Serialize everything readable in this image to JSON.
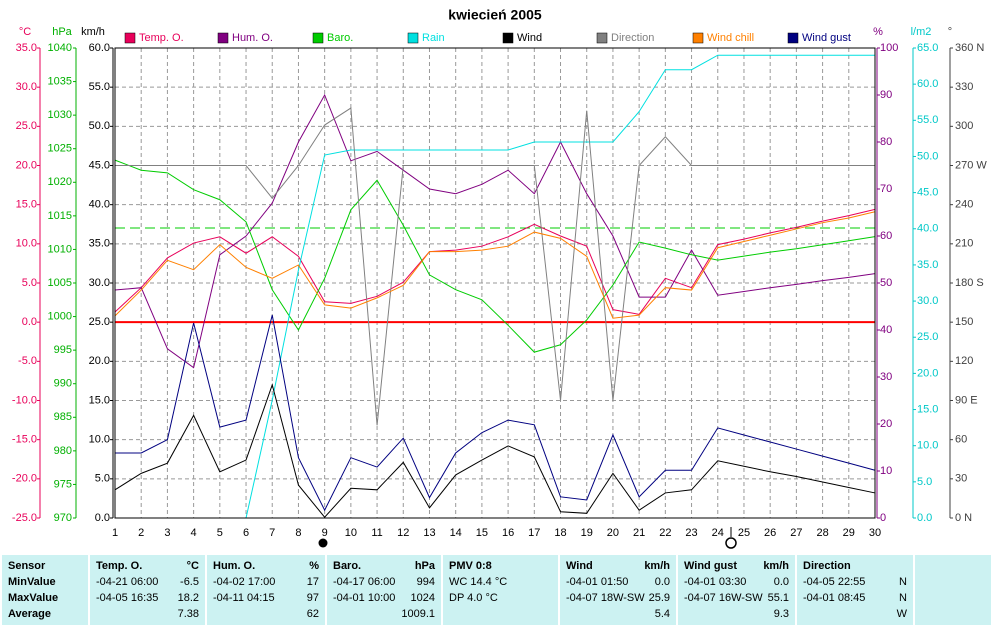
{
  "chart_data": {
    "type": "line",
    "title": "kwiecień 2005",
    "x": [
      1,
      2,
      3,
      4,
      5,
      6,
      7,
      8,
      9,
      10,
      11,
      12,
      13,
      14,
      15,
      16,
      17,
      18,
      19,
      20,
      21,
      22,
      23,
      24,
      25,
      26,
      27,
      28,
      29,
      30
    ],
    "xlim": [
      1,
      30
    ],
    "xticks": [
      1,
      2,
      3,
      4,
      5,
      6,
      7,
      8,
      9,
      10,
      11,
      12,
      13,
      14,
      15,
      16,
      17,
      18,
      19,
      20,
      21,
      22,
      23,
      24,
      25,
      26,
      27,
      28,
      29,
      30
    ],
    "ylabel": "km/h",
    "ylim": [
      0,
      60
    ],
    "yticks": [
      {
        "value": 0,
        "label": "0.0"
      },
      {
        "value": 5,
        "label": "5.0"
      },
      {
        "value": 10,
        "label": "10.0"
      },
      {
        "value": 15,
        "label": "15.0"
      },
      {
        "value": 20,
        "label": "20.0"
      },
      {
        "value": 25,
        "label": "25.0"
      },
      {
        "value": 30,
        "label": "30.0"
      },
      {
        "value": 35,
        "label": "35.0"
      },
      {
        "value": 40,
        "label": "40.0"
      },
      {
        "value": 45,
        "label": "45.0"
      },
      {
        "value": 50,
        "label": "50.0"
      },
      {
        "value": 55,
        "label": "55.0"
      },
      {
        "value": 60,
        "label": "60.0"
      }
    ],
    "grid": true,
    "axes": {
      "temp": {
        "label": "°C",
        "color": "#e8005a",
        "lim": [
          -25,
          35
        ],
        "ticks": [
          {
            "value": -25,
            "label": "-25.0"
          },
          {
            "value": -20,
            "label": "-20.0"
          },
          {
            "value": -15,
            "label": "-15.0"
          },
          {
            "value": -10,
            "label": "-10.0"
          },
          {
            "value": -5,
            "label": "-5.0"
          },
          {
            "value": 0,
            "label": "0.0"
          },
          {
            "value": 5,
            "label": "5.0"
          },
          {
            "value": 10,
            "label": "10.0"
          },
          {
            "value": 15,
            "label": "15.0"
          },
          {
            "value": 20,
            "label": "20.0"
          },
          {
            "value": 25,
            "label": "25.0"
          },
          {
            "value": 30,
            "label": "30.0"
          },
          {
            "value": 35,
            "label": "35.0"
          }
        ]
      },
      "baro": {
        "label": "hPa",
        "color": "#00b000",
        "lim": [
          970,
          1040
        ],
        "ticks": [
          970,
          975,
          980,
          985,
          990,
          995,
          1000,
          1005,
          1010,
          1015,
          1020,
          1025,
          1030,
          1035,
          1040
        ]
      },
      "hum": {
        "label": "%",
        "color": "#800080",
        "lim": [
          0,
          100
        ],
        "ticks": [
          0,
          10,
          20,
          30,
          40,
          50,
          60,
          70,
          80,
          90,
          100
        ]
      },
      "rain": {
        "label": "l/m2",
        "color": "#00c8c8",
        "lim": [
          0,
          65
        ],
        "ticks": [
          {
            "value": 0,
            "label": "0.0"
          },
          {
            "value": 5,
            "label": "5.0"
          },
          {
            "value": 10,
            "label": "10.0"
          },
          {
            "value": 15,
            "label": "15.0"
          },
          {
            "value": 20,
            "label": "20.0"
          },
          {
            "value": 25,
            "label": "25.0"
          },
          {
            "value": 30,
            "label": "30.0"
          },
          {
            "value": 35,
            "label": "35.0"
          },
          {
            "value": 40,
            "label": "40.0"
          },
          {
            "value": 45,
            "label": "45.0"
          },
          {
            "value": 50,
            "label": "50.0"
          },
          {
            "value": 55,
            "label": "55.0"
          },
          {
            "value": 60,
            "label": "60.0"
          },
          {
            "value": 65,
            "label": "65.0"
          }
        ]
      },
      "dir": {
        "label": "°",
        "color": "#404040",
        "lim": [
          0,
          360
        ],
        "ticks": [
          {
            "value": 0,
            "label": "0 N"
          },
          30,
          60,
          {
            "value": 90,
            "label": "90 E"
          },
          120,
          150,
          {
            "value": 180,
            "label": "180 S"
          },
          210,
          240,
          {
            "value": 270,
            "label": "270 W"
          },
          300,
          330,
          {
            "value": 360,
            "label": "360 N"
          }
        ]
      }
    },
    "reference_lines": [
      {
        "axis": "temp",
        "value": 0,
        "color": "#ff0000",
        "style": "solid"
      },
      {
        "axis": "baro",
        "value": 1013.2,
        "color": "#00cc00",
        "style": "dashed"
      }
    ],
    "series": [
      {
        "name": "Temp. O.",
        "color": "#e8005a",
        "axis": "temp",
        "values": [
          1.3,
          4.4,
          8.2,
          10.1,
          10.9,
          8.8,
          10.9,
          8.4,
          2.6,
          2.4,
          3.3,
          5.1,
          9.0,
          9.2,
          9.7,
          10.9,
          12.5,
          11.0,
          9.7,
          1.6,
          1.0,
          5.6,
          4.4,
          9.9,
          10.6,
          11.4,
          12.1,
          12.9,
          13.6,
          14.4
        ]
      },
      {
        "name": "Hum. O.",
        "color": "#800080",
        "axis": "hum",
        "values": [
          48.5,
          49,
          36,
          32,
          56,
          60,
          67,
          80,
          90,
          76,
          78,
          74,
          70,
          69,
          71,
          74,
          69,
          80,
          69,
          60,
          47,
          47,
          57,
          47.4,
          48.2,
          49,
          49.7,
          50.5,
          51.2,
          52
        ]
      },
      {
        "name": "Baro.",
        "color": "#00cc00",
        "axis": "baro",
        "values": [
          1023.3,
          1021.8,
          1021.4,
          1018.9,
          1017.4,
          1014.1,
          1004,
          998,
          1005.7,
          1015.9,
          1020.3,
          1013.6,
          1006.2,
          1004,
          1002.5,
          998.7,
          994.7,
          995.8,
          999.5,
          1004.7,
          1011.1,
          1010.2,
          1009.2,
          1008.4,
          1009,
          1009.6,
          1010.1,
          1010.7,
          1011.3,
          1011.9
        ]
      },
      {
        "name": "Rain",
        "color": "#00e0e0",
        "axis": "rain",
        "values": [
          null,
          null,
          null,
          null,
          null,
          0,
          16.3,
          34.3,
          50.2,
          50.9,
          50.9,
          50.9,
          50.9,
          50.9,
          50.9,
          50.9,
          52,
          52,
          52,
          52,
          56.2,
          62,
          62,
          64,
          64,
          64,
          64,
          64,
          64,
          64
        ]
      },
      {
        "name": "Wind",
        "color": "#000000",
        "axis": "y",
        "values": [
          3.6,
          5.7,
          7.0,
          13.1,
          5.9,
          7.4,
          17.0,
          4.2,
          0.1,
          3.8,
          3.6,
          7.1,
          1.3,
          5.5,
          7.4,
          9.2,
          7.8,
          0.8,
          0.6,
          5.7,
          1.0,
          3.2,
          3.6,
          7.3,
          6.6,
          5.9,
          5.3,
          4.6,
          3.9,
          3.2
        ]
      },
      {
        "name": "Direction",
        "color": "#808080",
        "axis": "dir",
        "values": [
          270,
          270,
          270,
          270,
          270,
          270,
          245,
          270,
          301,
          314,
          71,
          270,
          270,
          270,
          270,
          270,
          270,
          90,
          312,
          90,
          270,
          292,
          270,
          270,
          270,
          270,
          270,
          270,
          270,
          270
        ]
      },
      {
        "name": "Wind chill",
        "color": "#ff8000",
        "axis": "temp",
        "values": [
          0.8,
          4.1,
          7.9,
          6.7,
          9.9,
          7.0,
          5.6,
          7.3,
          2.2,
          1.8,
          3.1,
          4.7,
          9.0,
          9.0,
          9.2,
          9.7,
          11.5,
          10.7,
          8.4,
          0.5,
          0.9,
          4.4,
          4.1,
          9.5,
          10.3,
          11.1,
          11.9,
          12.7,
          13.3,
          14.1
        ]
      },
      {
        "name": "Wind gust",
        "color": "#000080",
        "axis": "y",
        "values": [
          8.3,
          8.3,
          10.0,
          24.9,
          11.6,
          12.5,
          25.9,
          7.7,
          1.0,
          7.7,
          6.5,
          10.2,
          2.6,
          8.3,
          10.9,
          12.5,
          11.9,
          2.7,
          2.3,
          10.6,
          2.7,
          6.1,
          6.1,
          11.5,
          10.6,
          9.7,
          8.8,
          7.9,
          7.0,
          6.1
        ]
      }
    ]
  },
  "table": {
    "sections": [
      {
        "title": "Sensor",
        "rows": [
          {
            "when": "MinValue"
          },
          {
            "when": "MaxValue"
          },
          {
            "when": "Average"
          }
        ]
      },
      {
        "title": "Temp. O.",
        "unit": "°C",
        "rows": [
          {
            "when": "-04-21  06:00",
            "value": "-6.5"
          },
          {
            "when": "-04-05  16:35",
            "value": "18.2"
          },
          {
            "value": "7.38"
          }
        ]
      },
      {
        "title": "Hum. O.",
        "unit": "%",
        "rows": [
          {
            "when": "-04-02  17:00",
            "value": "17"
          },
          {
            "when": "-04-11  04:15",
            "value": "97"
          },
          {
            "value": "62"
          }
        ]
      },
      {
        "title": "Baro.",
        "unit": "hPa",
        "rows": [
          {
            "when": "-04-17  06:00",
            "value": "994"
          },
          {
            "when": "-04-01  10:00",
            "value": "1024"
          },
          {
            "value": "1009.1"
          }
        ]
      },
      {
        "title": "PMV 0:8",
        "rows": [
          {
            "when": "WC 14.4 °C"
          },
          {
            "when": "DP 4.0 °C"
          }
        ]
      },
      {
        "title": "Wind",
        "unit": "km/h",
        "rows": [
          {
            "when": "-04-01  01:50",
            "value": "0.0"
          },
          {
            "when": "-04-07  18W-SW",
            "value": "25.9"
          },
          {
            "value": "5.4"
          }
        ]
      },
      {
        "title": "Wind gust",
        "unit": "km/h",
        "rows": [
          {
            "when": "-04-01  03:30",
            "value": "0.0"
          },
          {
            "when": "-04-07  16W-SW",
            "value": "55.1"
          },
          {
            "value": "9.3"
          }
        ]
      },
      {
        "title": "Direction",
        "rows": [
          {
            "when": "-04-05  22:55",
            "value": "N"
          },
          {
            "when": "-04-01  08:45",
            "value": "N"
          },
          {
            "value": "W"
          }
        ]
      }
    ]
  }
}
